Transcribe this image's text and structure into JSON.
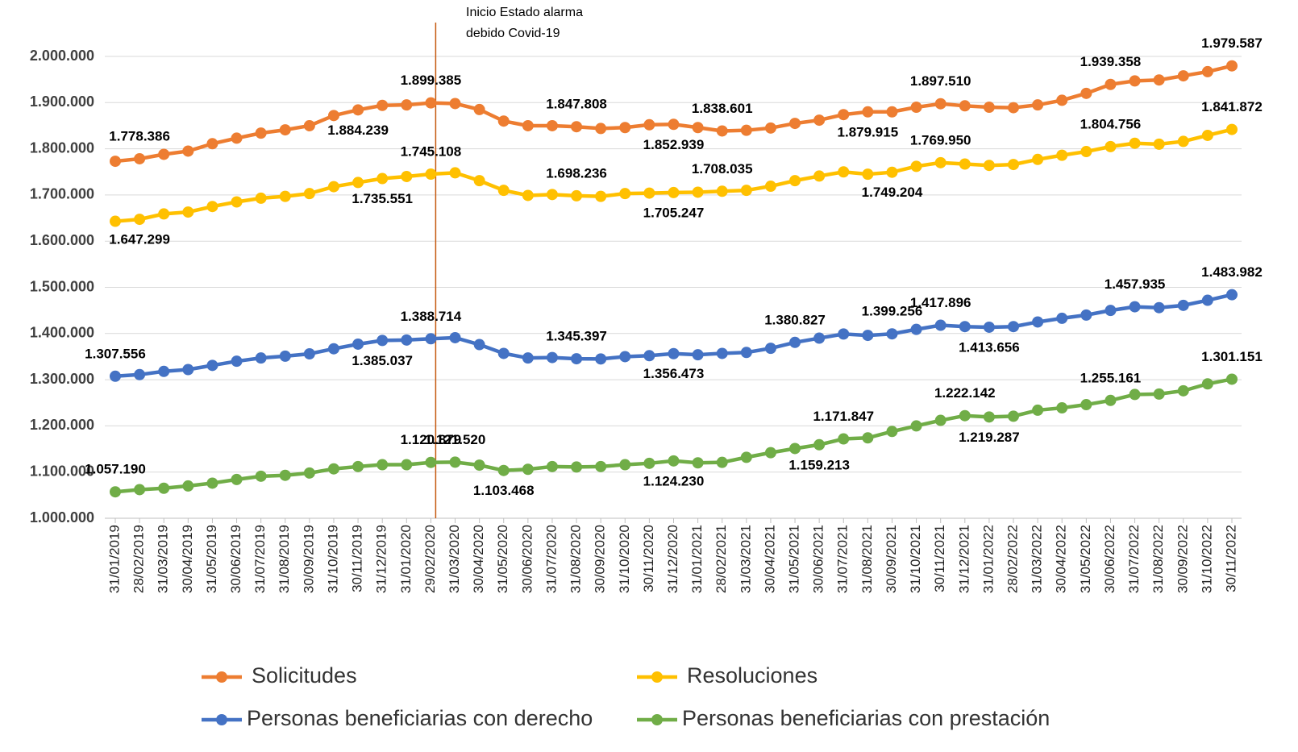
{
  "chart_data": {
    "type": "line",
    "annotation": [
      "Inicio Estado alarma",
      "debido Covid-19"
    ],
    "categories": [
      "31/01/2019",
      "28/02/2019",
      "31/03/2019",
      "30/04/2019",
      "31/05/2019",
      "30/06/2019",
      "31/07/2019",
      "31/08/2019",
      "30/09/2019",
      "31/10/2019",
      "30/11/2019",
      "31/12/2019",
      "31/01/2020",
      "29/02/2020",
      "31/03/2020",
      "30/04/2020",
      "31/05/2020",
      "30/06/2020",
      "31/07/2020",
      "31/08/2020",
      "30/09/2020",
      "31/10/2020",
      "30/11/2020",
      "31/12/2020",
      "31/01/2021",
      "28/02/2021",
      "31/03/2021",
      "30/04/2021",
      "31/05/2021",
      "30/06/2021",
      "31/07/2021",
      "31/08/2021",
      "30/09/2021",
      "31/10/2021",
      "30/11/2021",
      "31/12/2021",
      "31/01/2022",
      "28/02/2022",
      "31/03/2022",
      "30/04/2022",
      "31/05/2022",
      "30/06/2022",
      "31/07/2022",
      "31/08/2022",
      "30/09/2022",
      "31/10/2022",
      "30/11/2022"
    ],
    "series": [
      {
        "name": "Solicitudes",
        "color": "#ED7D31",
        "values": [
          1773000,
          1778386,
          1788000,
          1795000,
          1811000,
          1823000,
          1834000,
          1841000,
          1850000,
          1872000,
          1884239,
          1894000,
          1895000,
          1899385,
          1898000,
          1885000,
          1860000,
          1850000,
          1850000,
          1847808,
          1844000,
          1846000,
          1852000,
          1852939,
          1846000,
          1838601,
          1840000,
          1845000,
          1855000,
          1862000,
          1874000,
          1879915,
          1880000,
          1890000,
          1897510,
          1893000,
          1890000,
          1889000,
          1895000,
          1905000,
          1920000,
          1939358,
          1947000,
          1949000,
          1958000,
          1967000,
          1979587
        ],
        "value_labels": [
          null,
          "1.778.386",
          null,
          null,
          null,
          null,
          null,
          null,
          null,
          null,
          "1.884.239",
          null,
          null,
          "1.899.385",
          null,
          null,
          null,
          null,
          null,
          "1.847.808",
          null,
          null,
          null,
          "1.852.939",
          null,
          "1.838.601",
          null,
          null,
          null,
          null,
          null,
          "1.879.915",
          null,
          null,
          "1.897.510",
          null,
          null,
          null,
          null,
          null,
          null,
          "1.939.358",
          null,
          null,
          null,
          null,
          "1.979.587"
        ]
      },
      {
        "name": "Resoluciones",
        "color": "#FFC000",
        "values": [
          1643000,
          1647299,
          1659000,
          1663000,
          1675000,
          1685000,
          1693000,
          1697000,
          1703000,
          1718000,
          1727000,
          1735551,
          1740000,
          1745108,
          1748000,
          1731000,
          1710000,
          1699000,
          1701000,
          1698236,
          1697000,
          1703000,
          1704000,
          1705247,
          1706000,
          1708035,
          1710000,
          1719000,
          1731000,
          1741000,
          1750000,
          1745000,
          1749204,
          1762000,
          1769950,
          1767000,
          1764000,
          1766000,
          1777000,
          1786000,
          1794000,
          1804756,
          1812000,
          1810000,
          1816000,
          1829000,
          1841872
        ],
        "value_labels": [
          null,
          "1.647.299",
          null,
          null,
          null,
          null,
          null,
          null,
          null,
          null,
          null,
          "1.735.551",
          null,
          "1.745.108",
          null,
          null,
          null,
          null,
          null,
          "1.698.236",
          null,
          null,
          null,
          "1.705.247",
          null,
          "1.708.035",
          null,
          null,
          null,
          null,
          null,
          null,
          "1.749.204",
          null,
          "1.769.950",
          null,
          null,
          null,
          null,
          null,
          null,
          "1.804.756",
          null,
          null,
          null,
          null,
          "1.841.872"
        ]
      },
      {
        "name": "Personas beneficiarias con derecho",
        "color": "#4472C4",
        "values": [
          1307556,
          1311000,
          1318000,
          1322000,
          1331000,
          1340000,
          1347000,
          1351000,
          1356000,
          1367000,
          1377000,
          1385037,
          1386000,
          1388714,
          1391000,
          1376000,
          1357000,
          1347000,
          1348000,
          1345397,
          1345000,
          1350000,
          1352000,
          1356473,
          1354000,
          1357000,
          1359000,
          1368000,
          1380827,
          1390000,
          1399000,
          1396000,
          1399256,
          1409000,
          1417896,
          1415000,
          1413656,
          1415000,
          1425000,
          1433000,
          1440000,
          1450000,
          1457935,
          1456000,
          1461000,
          1472000,
          1483982
        ],
        "value_labels": [
          "1.307.556",
          null,
          null,
          null,
          null,
          null,
          null,
          null,
          null,
          null,
          null,
          "1.385.037",
          null,
          "1.388.714",
          null,
          null,
          null,
          null,
          null,
          "1.345.397",
          null,
          null,
          null,
          "1.356.473",
          null,
          null,
          null,
          null,
          "1.380.827",
          null,
          null,
          null,
          "1.399.256",
          null,
          "1.417.896",
          null,
          "1.413.656",
          null,
          null,
          null,
          null,
          null,
          "1.457.935",
          null,
          null,
          null,
          "1.483.982"
        ]
      },
      {
        "name": "Personas beneficiarias con prestación",
        "color": "#70AD47",
        "values": [
          1057190,
          1062000,
          1065000,
          1070000,
          1076000,
          1084000,
          1091000,
          1093000,
          1098000,
          1107000,
          1112000,
          1116000,
          1116000,
          1120879,
          1121520,
          1115000,
          1103468,
          1106000,
          1112000,
          1111000,
          1112000,
          1116000,
          1119000,
          1124230,
          1120000,
          1121000,
          1132000,
          1142000,
          1151000,
          1159213,
          1171847,
          1174000,
          1188000,
          1200000,
          1212000,
          1222142,
          1219287,
          1221000,
          1234000,
          1239000,
          1246000,
          1255161,
          1268000,
          1269000,
          1276000,
          1291000,
          1301151
        ],
        "value_labels": [
          "1.057.190",
          null,
          null,
          null,
          null,
          null,
          null,
          null,
          null,
          null,
          null,
          null,
          null,
          "1.120.879",
          "1.121.520",
          null,
          "1.103.468",
          null,
          null,
          null,
          null,
          null,
          null,
          "1.124.230",
          null,
          null,
          null,
          null,
          null,
          "1.159.213",
          "1.171.847",
          null,
          null,
          null,
          null,
          "1.222.142",
          "1.219.287",
          null,
          null,
          null,
          null,
          "1.255.161",
          null,
          null,
          null,
          null,
          "1.301.151"
        ]
      }
    ],
    "ylim": [
      1000000,
      2000000
    ],
    "yticks": [
      {
        "value": 1000000,
        "label": "1.000.000"
      },
      {
        "value": 1100000,
        "label": "1.100.000"
      },
      {
        "value": 1200000,
        "label": "1.200.000"
      },
      {
        "value": 1300000,
        "label": "1.300.000"
      },
      {
        "value": 1400000,
        "label": "1.400.000"
      },
      {
        "value": 1500000,
        "label": "1.500.000"
      },
      {
        "value": 1600000,
        "label": "1.600.000"
      },
      {
        "value": 1700000,
        "label": "1.700.000"
      },
      {
        "value": 1800000,
        "label": "1.800.000"
      },
      {
        "value": 1900000,
        "label": "1.900.000"
      },
      {
        "value": 2000000,
        "label": "2.000.000"
      }
    ],
    "grid": true,
    "legend": "bottom"
  }
}
